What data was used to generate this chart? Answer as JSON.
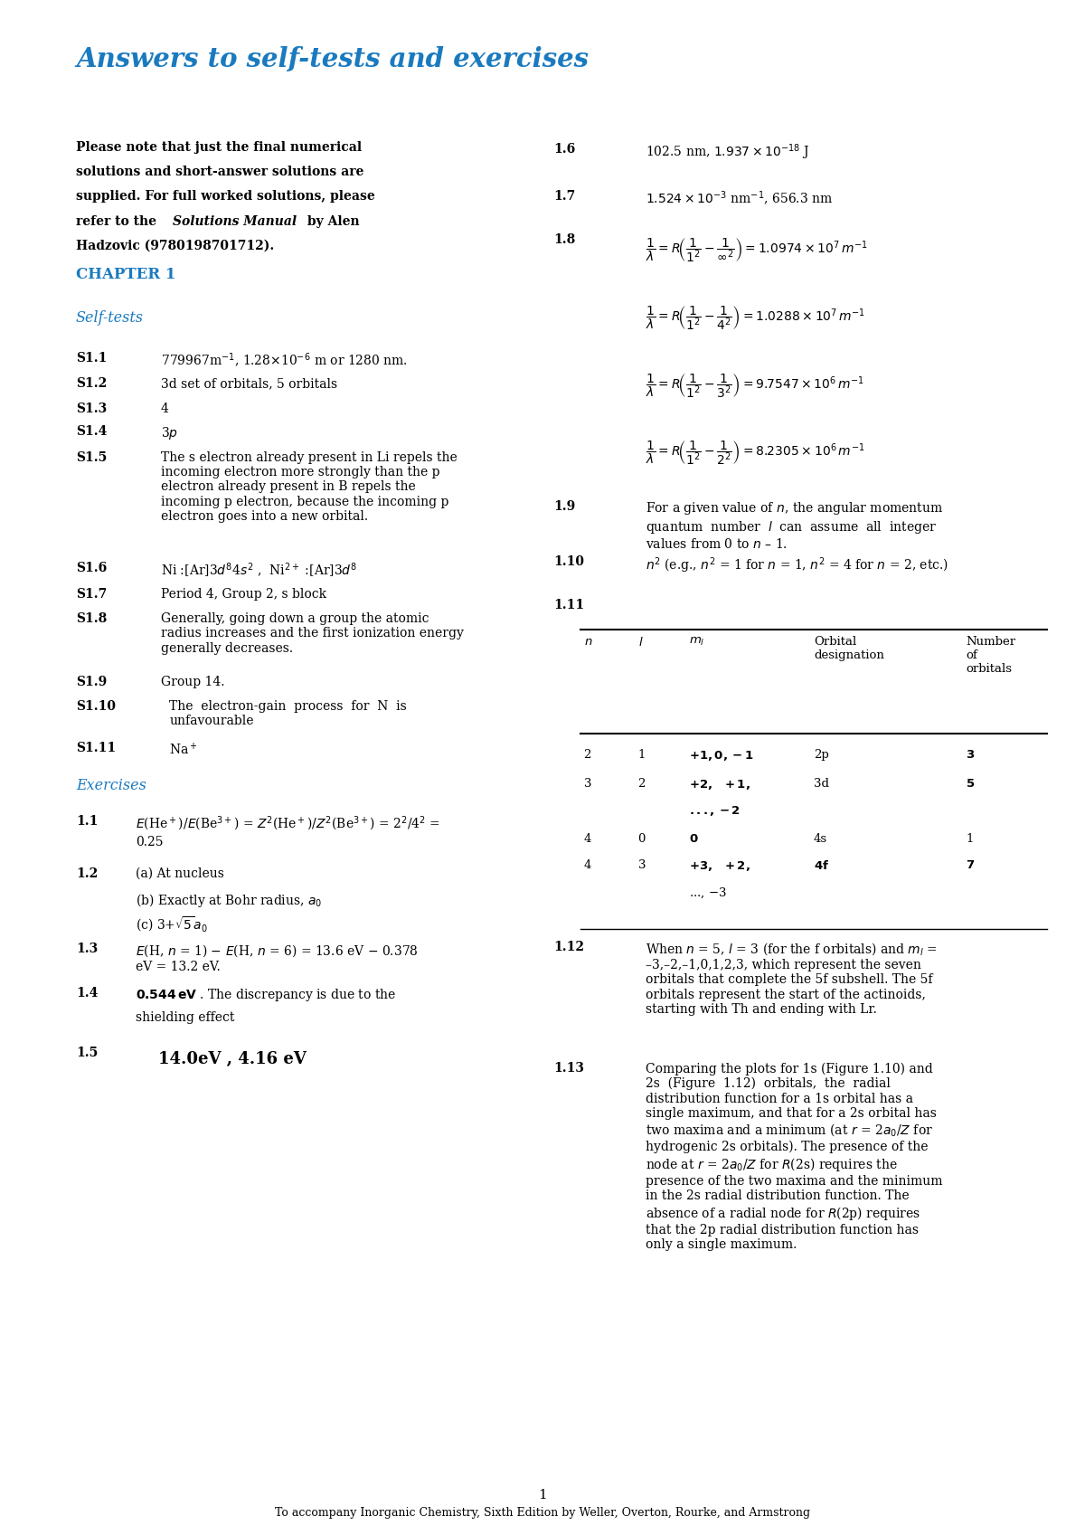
{
  "title": "Answers to self-tests and exercises",
  "title_color": "#1a7abf",
  "bg_color": "#ffffff",
  "text_color": "#000000",
  "page_number": "1",
  "footer": "To accompany Inorganic Chemistry, Sixth Edition by Weller, Overton, Rourke, and Armstrong"
}
